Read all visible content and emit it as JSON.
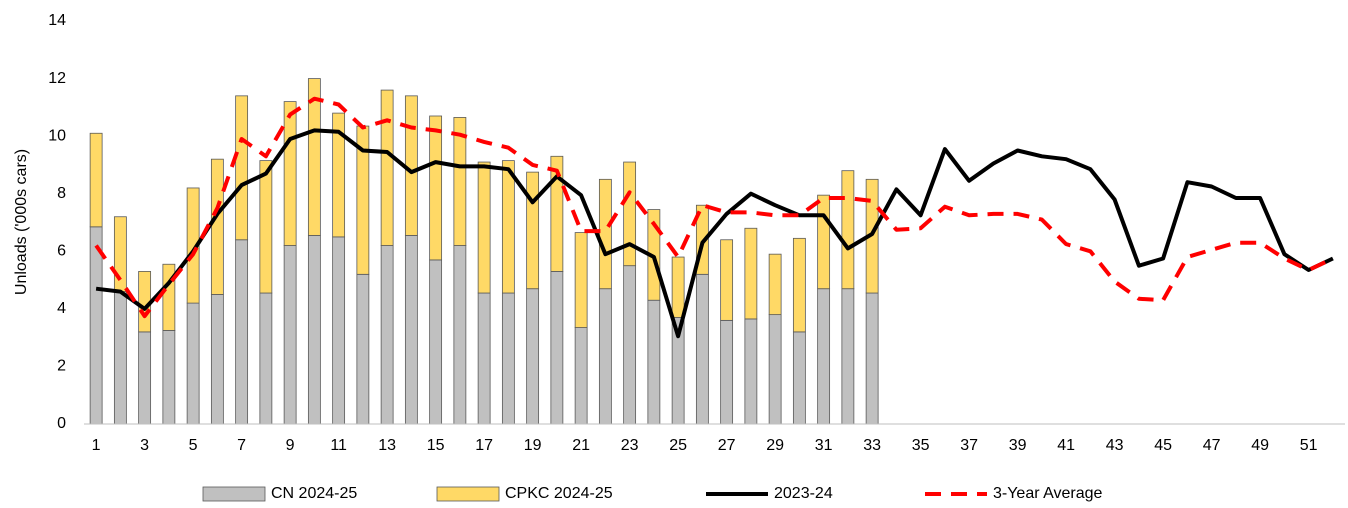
{
  "chart_data": {
    "type": "bar",
    "stacked": true,
    "y_label": "Unloads ('000s cars)",
    "categories": [
      1,
      null,
      3,
      null,
      5,
      null,
      7,
      null,
      9,
      null,
      11,
      null,
      13,
      null,
      15,
      null,
      17,
      null,
      19,
      null,
      21,
      null,
      23,
      null,
      25,
      null,
      27,
      null,
      29,
      null,
      31,
      null,
      33,
      null,
      35,
      null,
      37,
      null,
      39,
      null,
      41,
      null,
      43,
      null,
      45,
      null,
      47,
      null,
      49,
      null,
      51,
      null
    ],
    "ylim": [
      0,
      14
    ],
    "yticks": [
      0,
      2,
      4,
      6,
      8,
      10,
      12,
      14
    ],
    "grid": false,
    "legend": "bottom",
    "series": [
      {
        "name": "CN 2024-25",
        "kind": "bar",
        "color": "#c0c0c0",
        "values": [
          6.85,
          4.6,
          3.2,
          3.25,
          4.2,
          4.5,
          6.4,
          4.55,
          6.2,
          6.55,
          6.5,
          5.2,
          6.2,
          6.55,
          5.7,
          6.2,
          4.55,
          4.55,
          4.7,
          5.3,
          3.35,
          4.7,
          5.5,
          4.3,
          3.7,
          5.2,
          3.6,
          3.65,
          3.8,
          3.2,
          4.7,
          4.7,
          4.55,
          null,
          null,
          null,
          null,
          null,
          null,
          null,
          null,
          null,
          null,
          null,
          null,
          null,
          null,
          null,
          null,
          null,
          null,
          null
        ]
      },
      {
        "name": "CPKC 2024-25",
        "kind": "bar",
        "color": "#ffd966",
        "values": [
          3.25,
          2.6,
          2.1,
          2.3,
          4.0,
          4.7,
          5.0,
          4.6,
          5.0,
          5.45,
          4.3,
          5.15,
          5.4,
          4.85,
          5.0,
          4.45,
          4.55,
          4.6,
          4.05,
          4.0,
          3.3,
          3.8,
          3.6,
          3.15,
          2.1,
          2.4,
          2.8,
          3.15,
          2.1,
          3.25,
          3.25,
          4.1,
          3.95,
          null,
          null,
          null,
          null,
          null,
          null,
          null,
          null,
          null,
          null,
          null,
          null,
          null,
          null,
          null,
          null,
          null,
          null,
          null
        ]
      },
      {
        "name": "2023-24",
        "kind": "line",
        "color": "#000000",
        "dash": false,
        "values": [
          4.7,
          4.6,
          4.0,
          4.9,
          6.0,
          7.3,
          8.3,
          8.7,
          9.9,
          10.2,
          10.15,
          9.5,
          9.45,
          8.75,
          9.1,
          8.95,
          8.95,
          8.85,
          7.7,
          8.6,
          7.95,
          5.9,
          6.25,
          5.8,
          3.05,
          6.3,
          7.3,
          8.0,
          7.6,
          7.25,
          7.25,
          6.1,
          6.6,
          8.15,
          7.25,
          9.55,
          8.45,
          9.05,
          9.5,
          9.3,
          9.2,
          8.85,
          7.8,
          5.5,
          5.75,
          8.4,
          8.25,
          7.85,
          7.85,
          5.9,
          5.35,
          5.75
        ]
      },
      {
        "name": "3-Year Average",
        "kind": "line",
        "color": "#ff0000",
        "dash": true,
        "values": [
          6.2,
          5.0,
          3.75,
          4.85,
          5.9,
          7.5,
          9.9,
          9.3,
          10.75,
          11.3,
          11.1,
          10.3,
          10.55,
          10.3,
          10.2,
          10.05,
          9.8,
          9.6,
          9.0,
          8.8,
          6.7,
          6.7,
          8.05,
          6.95,
          5.8,
          7.6,
          7.35,
          7.35,
          7.25,
          7.25,
          7.85,
          7.85,
          7.75,
          6.75,
          6.8,
          7.55,
          7.25,
          7.3,
          7.3,
          7.1,
          6.25,
          6.0,
          4.95,
          4.35,
          4.3,
          5.8,
          6.05,
          6.3,
          6.3,
          5.75,
          5.35,
          5.75
        ]
      }
    ]
  }
}
